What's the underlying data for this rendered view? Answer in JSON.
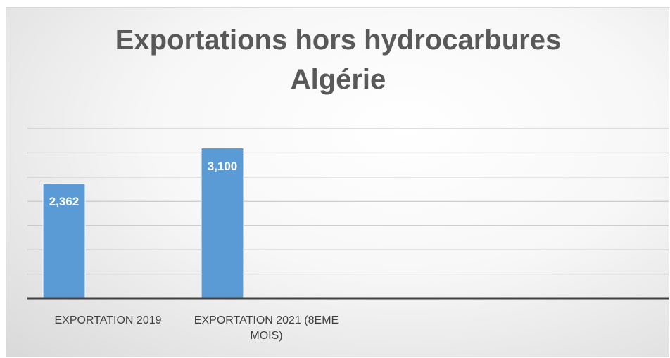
{
  "chart_data": {
    "type": "bar",
    "title": "Exportations hors hydrocarbures Algérie",
    "categories": [
      "EXPORTATION 2019",
      "EXPORTATION 2021 (8EME MOIS)"
    ],
    "values": [
      2362,
      3100
    ],
    "value_labels": [
      "2,362",
      "3,100"
    ],
    "color": "#5b9bd5",
    "ylim": [
      0,
      3500
    ],
    "yticks": [
      0,
      500,
      1000,
      1500,
      2000,
      2500,
      3000,
      3500
    ],
    "grid": true
  }
}
